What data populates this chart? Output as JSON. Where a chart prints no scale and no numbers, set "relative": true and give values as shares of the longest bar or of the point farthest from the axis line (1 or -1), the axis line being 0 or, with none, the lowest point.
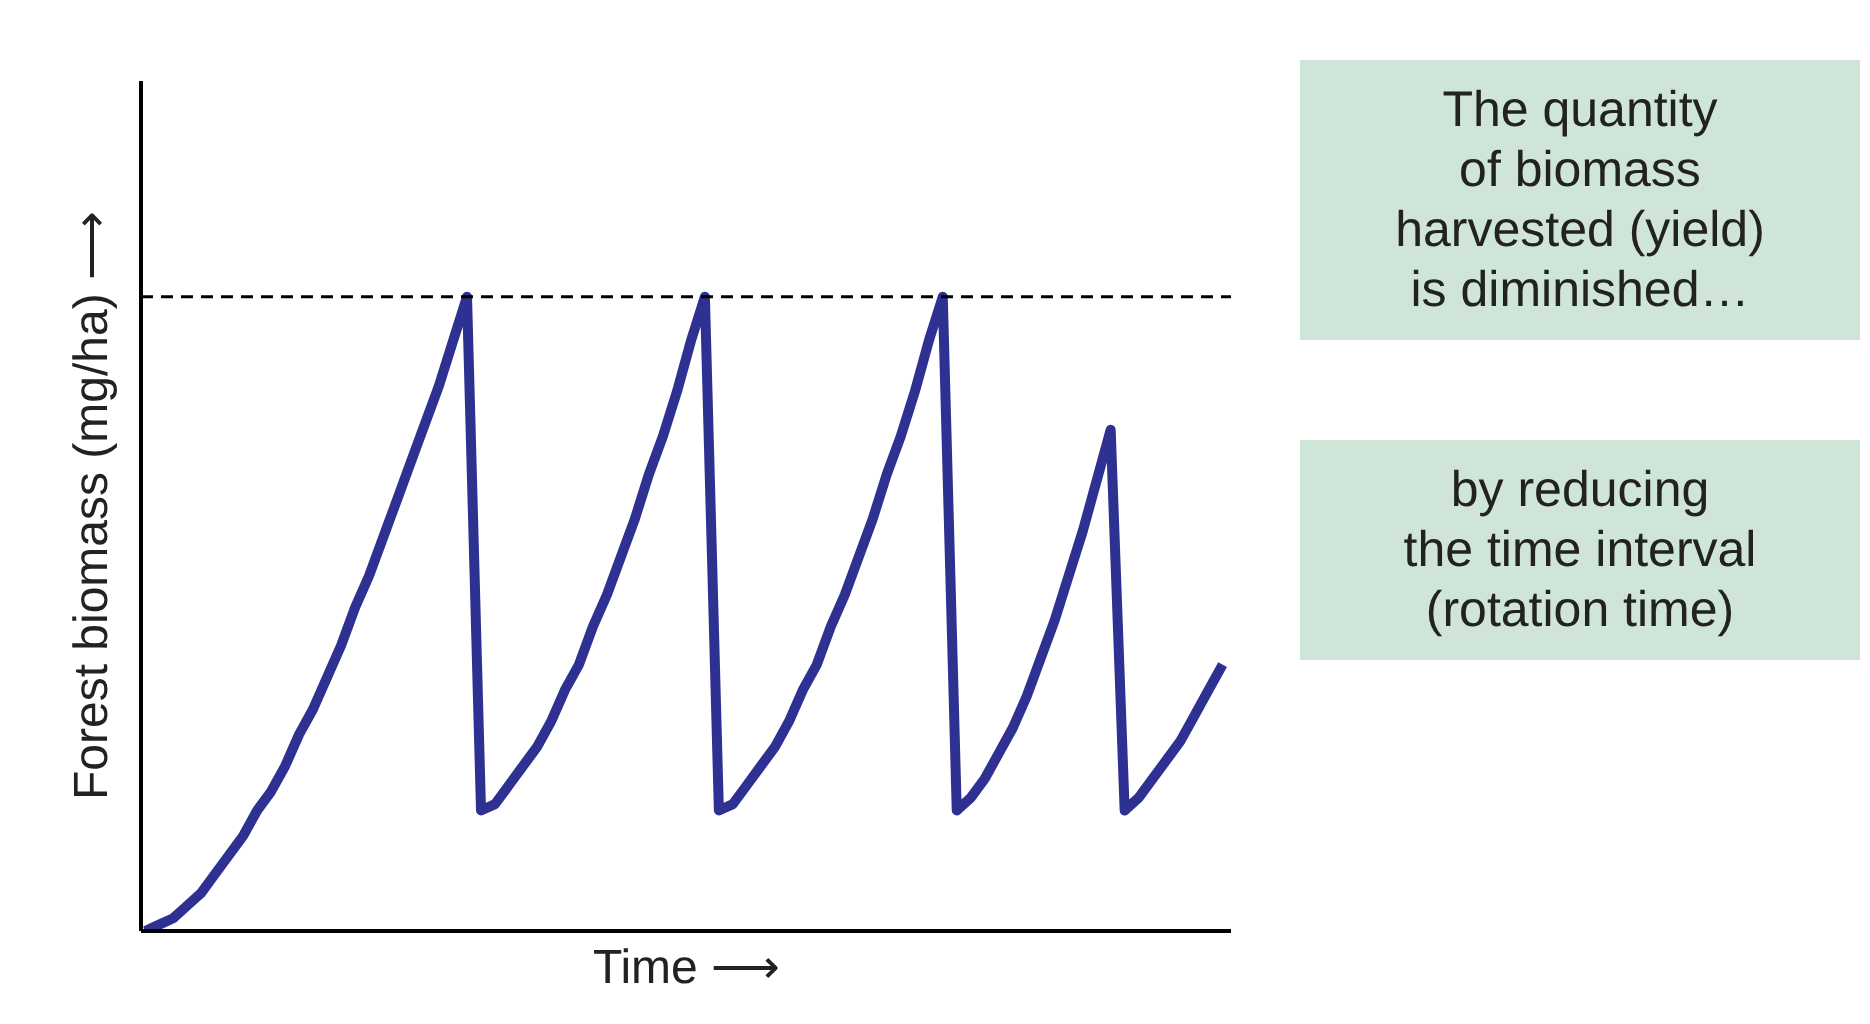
{
  "chart_data": {
    "type": "line",
    "relative": true,
    "xlabel": "Time ⟶",
    "ylabel": "Forest biomass (mg/ha) ⟶",
    "categories": [
      null,
      null,
      null,
      null,
      null,
      null,
      null,
      null,
      null,
      null,
      null,
      null,
      null,
      null,
      null,
      null,
      null,
      null,
      null,
      null,
      null,
      null,
      null,
      null,
      null,
      null,
      null,
      null,
      null,
      null,
      null,
      null,
      null,
      null,
      null,
      null,
      null,
      null,
      null,
      null,
      null,
      null,
      null,
      null,
      null,
      null,
      null,
      null,
      null,
      null,
      null,
      null,
      null,
      null,
      null,
      null,
      null,
      null,
      null,
      null,
      null,
      null,
      null,
      null,
      null,
      null,
      null,
      null,
      null,
      null,
      null,
      null,
      null,
      null,
      null,
      null,
      null,
      null
    ],
    "series": [
      {
        "color": "#2e3192",
        "values": [
          0,
          0.01,
          0.02,
          0.04,
          0.06,
          0.09,
          0.12,
          0.15,
          0.19,
          0.22,
          0.26,
          0.31,
          0.35,
          0.4,
          0.45,
          0.51,
          0.56,
          0.62,
          0.68,
          0.74,
          0.8,
          0.86,
          0.93,
          1.0,
          0.19,
          0.2,
          0.23,
          0.26,
          0.29,
          0.33,
          0.38,
          0.42,
          0.48,
          0.53,
          0.59,
          0.65,
          0.72,
          0.78,
          0.85,
          0.93,
          1.0,
          0.19,
          0.2,
          0.23,
          0.26,
          0.29,
          0.33,
          0.38,
          0.42,
          0.48,
          0.53,
          0.59,
          0.65,
          0.72,
          0.78,
          0.85,
          0.93,
          1.0,
          0.19,
          0.21,
          0.24,
          0.28,
          0.32,
          0.37,
          0.43,
          0.49,
          0.56,
          0.63,
          0.71,
          0.79,
          0.19,
          0.21,
          0.24,
          0.27,
          0.3,
          0.34,
          0.38,
          0.42
        ]
      }
    ],
    "ref_lines": [
      {
        "axis": "y",
        "value": 1,
        "color": "#000000",
        "line_style": "dashed"
      }
    ],
    "annotations": [
      "The quantity\nof biomass\nharvested (yield)\nis diminished…",
      "by reducing\nthe time interval\n(rotation time)"
    ],
    "grid": false,
    "marker": "none",
    "line_style": "solid"
  }
}
